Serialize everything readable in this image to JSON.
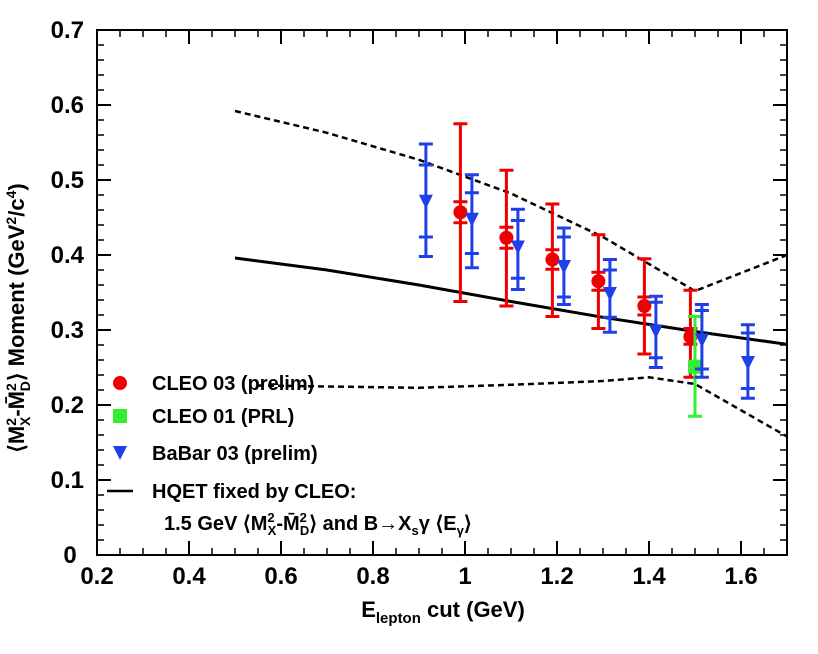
{
  "chart_data": {
    "type": "scatter",
    "xlim": [
      0.2,
      1.7
    ],
    "ylim": [
      0,
      0.7
    ],
    "grid": false,
    "legend_placement": "bottom-left",
    "colors": {
      "cleo03": "#ee0000",
      "cleo01": "#33ee33",
      "babar03": "#1f3fe8",
      "line": "#000000"
    },
    "x_ticks": [
      {
        "value": 0.2,
        "label": "0.2"
      },
      {
        "value": 0.4,
        "label": "0.4"
      },
      {
        "value": 0.6,
        "label": "0.6"
      },
      {
        "value": 0.8,
        "label": "0.8"
      },
      {
        "value": 1.0,
        "label": "1"
      },
      {
        "value": 1.2,
        "label": "1.2"
      },
      {
        "value": 1.4,
        "label": "1.4"
      },
      {
        "value": 1.6,
        "label": "1.6"
      }
    ],
    "y_ticks": [
      {
        "value": 0.1,
        "label": "0.1"
      },
      {
        "value": 0.2,
        "label": "0.2"
      },
      {
        "value": 0.3,
        "label": "0.3"
      },
      {
        "value": 0.4,
        "label": "0.4"
      },
      {
        "value": 0.5,
        "label": "0.5"
      },
      {
        "value": 0.6,
        "label": "0.6"
      },
      {
        "value": 0.7,
        "label": "0.7"
      }
    ],
    "origin_label": "0",
    "xlabel": {
      "main": "E",
      "sub": "lepton",
      "rest": " cut (GeV)"
    },
    "ylabel": {
      "lead": "⟨M",
      "sup1": "2",
      "sub1": "X",
      "mid": "-M̄",
      "sup2": "2",
      "sub2": "D",
      "rest": "⟩ Moment (GeV",
      "sup3": "2",
      "slash": "/c",
      "sup4": "4",
      "close": ")"
    },
    "series": [
      {
        "name": "CLEO 03 (prelim)",
        "marker": "circle",
        "color": "#ee0000",
        "points": [
          {
            "x": 0.99,
            "y": 0.457,
            "lo": 0.338,
            "hi": 0.575,
            "ilo": 0.443,
            "ihi": 0.471
          },
          {
            "x": 1.09,
            "y": 0.423,
            "lo": 0.332,
            "hi": 0.513,
            "ilo": 0.409,
            "ihi": 0.437
          },
          {
            "x": 1.19,
            "y": 0.394,
            "lo": 0.318,
            "hi": 0.468,
            "ilo": 0.381,
            "ihi": 0.407
          },
          {
            "x": 1.29,
            "y": 0.365,
            "lo": 0.302,
            "hi": 0.427,
            "ilo": 0.353,
            "ihi": 0.377
          },
          {
            "x": 1.39,
            "y": 0.332,
            "lo": 0.268,
            "hi": 0.395,
            "ilo": 0.32,
            "ihi": 0.344
          },
          {
            "x": 1.49,
            "y": 0.291,
            "lo": 0.237,
            "hi": 0.353,
            "ilo": 0.281,
            "ihi": 0.302
          }
        ]
      },
      {
        "name": "CLEO 01 (PRL)",
        "marker": "square",
        "color": "#33ee33",
        "points": [
          {
            "x": 1.5,
            "y": 0.251,
            "lo": 0.185,
            "hi": 0.318
          }
        ]
      },
      {
        "name": "BaBar 03 (prelim)",
        "marker": "triangle-down",
        "color": "#1f3fe8",
        "points": [
          {
            "x": 0.915,
            "y": 0.471,
            "lo": 0.398,
            "hi": 0.548,
            "ilo": 0.424,
            "ihi": 0.52
          },
          {
            "x": 1.015,
            "y": 0.447,
            "lo": 0.383,
            "hi": 0.507,
            "ilo": 0.402,
            "ihi": 0.483
          },
          {
            "x": 1.115,
            "y": 0.41,
            "lo": 0.354,
            "hi": 0.461,
            "ilo": 0.369,
            "ihi": 0.446
          },
          {
            "x": 1.215,
            "y": 0.384,
            "lo": 0.334,
            "hi": 0.436,
            "ilo": 0.344,
            "ihi": 0.424
          },
          {
            "x": 1.315,
            "y": 0.348,
            "lo": 0.297,
            "hi": 0.394,
            "ilo": 0.317,
            "ihi": 0.38
          },
          {
            "x": 1.415,
            "y": 0.298,
            "lo": 0.25,
            "hi": 0.345,
            "ilo": 0.263,
            "ihi": 0.337
          },
          {
            "x": 1.515,
            "y": 0.286,
            "lo": 0.237,
            "hi": 0.334,
            "ilo": 0.248,
            "ihi": 0.326
          },
          {
            "x": 1.615,
            "y": 0.256,
            "lo": 0.209,
            "hi": 0.307,
            "ilo": 0.222,
            "ihi": 0.296
          }
        ]
      }
    ],
    "hqet_curve": {
      "name": "HQET fixed by CLEO:",
      "points": [
        [
          0.5,
          0.396
        ],
        [
          0.7,
          0.38
        ],
        [
          0.9,
          0.36
        ],
        [
          1.1,
          0.338
        ],
        [
          1.3,
          0.317
        ],
        [
          1.5,
          0.298
        ],
        [
          1.7,
          0.281
        ]
      ]
    },
    "band_upper": {
      "points": [
        [
          0.5,
          0.592
        ],
        [
          0.7,
          0.563
        ],
        [
          0.9,
          0.527
        ],
        [
          1.1,
          0.482
        ],
        [
          1.3,
          0.424
        ],
        [
          1.5,
          0.352
        ],
        [
          1.7,
          0.4
        ]
      ]
    },
    "band_lower": {
      "points": [
        [
          0.55,
          0.226
        ],
        [
          0.9,
          0.223
        ],
        [
          1.1,
          0.227
        ],
        [
          1.3,
          0.232
        ],
        [
          1.4,
          0.237
        ],
        [
          1.5,
          0.228
        ],
        [
          1.7,
          0.158
        ]
      ]
    },
    "legend": {
      "cleo03": "CLEO 03 (prelim)",
      "cleo01": "CLEO 01 (PRL)",
      "babar03": "BaBar 03 (prelim)",
      "hqet_line1": "HQET fixed by CLEO:",
      "hqet_line2": {
        "a": "1.5 GeV ⟨M",
        "sup1": "2",
        "sub1": "X",
        "b": "-M̄",
        "sup2": "2",
        "sub2": "D",
        "c": "⟩ and B→X",
        "sub3": "s",
        "d": "γ ⟨E",
        "sub4": "γ",
        "e": "⟩"
      }
    }
  }
}
